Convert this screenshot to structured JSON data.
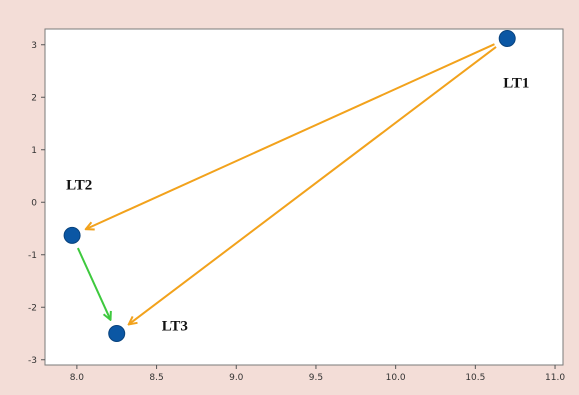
{
  "chart_data": {
    "type": "scatter",
    "title": "",
    "xlabel": "",
    "ylabel": "",
    "xlim": [
      7.8,
      11.05
    ],
    "ylim": [
      -3.1,
      3.3
    ],
    "x_ticks": [
      "8.0",
      "8.5",
      "9.0",
      "9.5",
      "10.0",
      "10.5",
      "11.0"
    ],
    "y_ticks": [
      "3",
      "2",
      "1",
      "0",
      "-1",
      "-2",
      "-3"
    ],
    "grid": false,
    "points": [
      {
        "label": "LT1",
        "x": 10.7,
        "y": 3.12
      },
      {
        "label": "LT2",
        "x": 7.97,
        "y": -0.63
      },
      {
        "label": "LT3",
        "x": 8.25,
        "y": -2.5
      }
    ],
    "arrows": [
      {
        "from": "LT1",
        "to": "LT2",
        "color": "#f2a21c"
      },
      {
        "from": "LT1",
        "to": "LT3",
        "color": "#f2a21c"
      },
      {
        "from": "LT2",
        "to": "LT3",
        "color": "#3ec93e"
      }
    ],
    "colors": {
      "background": "#f3ddd7",
      "plot_area": "#ffffff",
      "point": "#0b57a4",
      "orange_arrow": "#f2a21c",
      "green_arrow": "#3ec93e"
    }
  }
}
